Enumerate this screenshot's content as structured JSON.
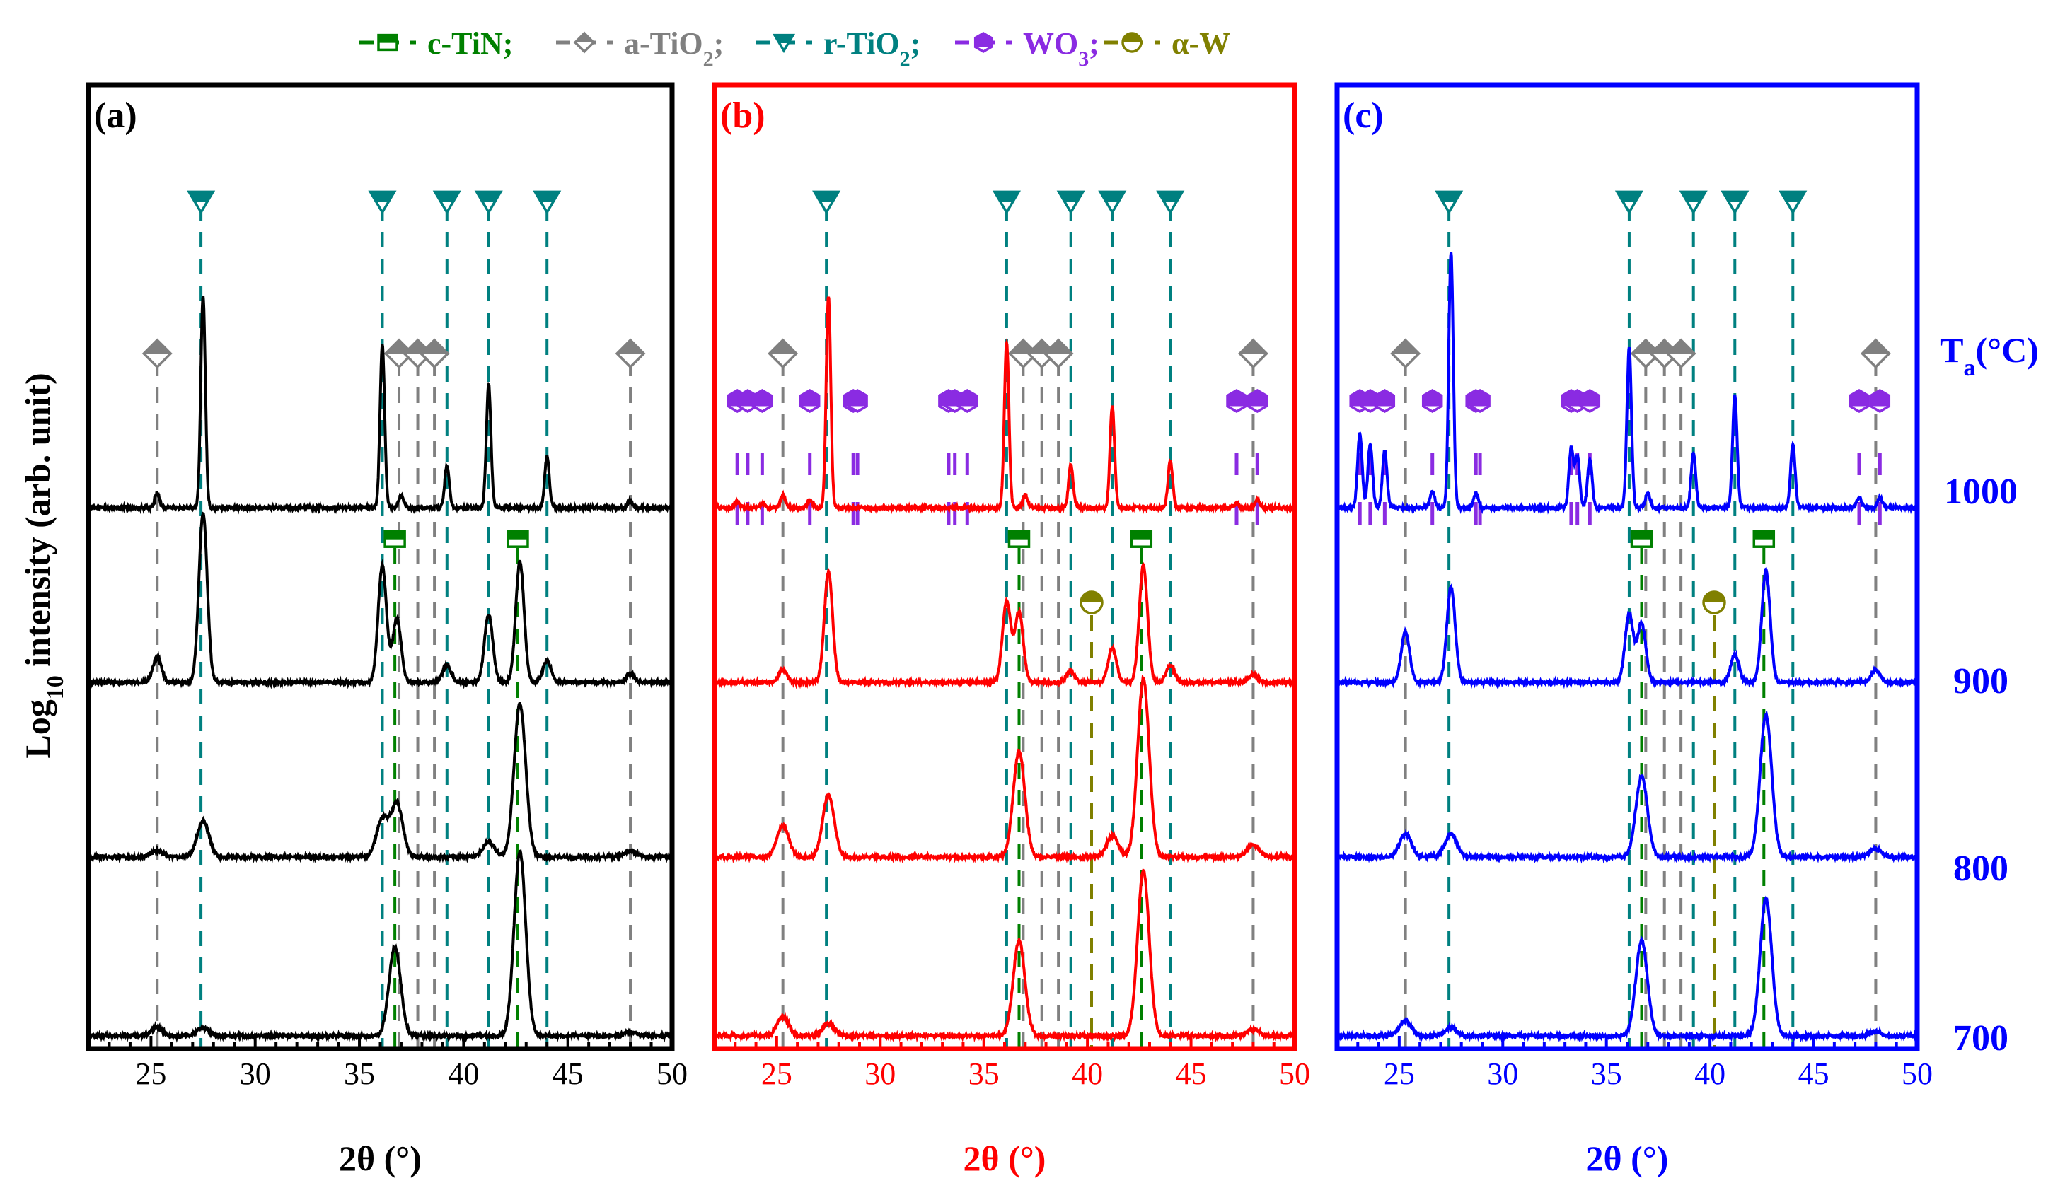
{
  "figure": {
    "ylabel_main": "Log",
    "ylabel_sub": "10",
    "ylabel_rest": " intensity (arb. unit)",
    "temp_axis_title": "T",
    "temp_axis_title_sub": "a",
    "temp_axis_title_unit": "(°C)",
    "temperatures": [
      "1000",
      "900",
      "800",
      "700"
    ]
  },
  "legend": [
    {
      "id": "ctin",
      "label": "c-TiN;",
      "color": "#008000",
      "marker": "half-square-icon"
    },
    {
      "id": "atio2",
      "label": "a-TiO",
      "sub": "2",
      "suffix": ";",
      "color": "#808080",
      "marker": "diamond-icon"
    },
    {
      "id": "rtio2",
      "label": "r-TiO",
      "sub": "2",
      "suffix": ";",
      "color": "#008080",
      "marker": "down-triangle-icon"
    },
    {
      "id": "wo3",
      "label": "WO",
      "sub": "3",
      "suffix": ";",
      "color": "#8a2be2",
      "marker": "hexagon-icon"
    },
    {
      "id": "alphaw",
      "label": "α-W",
      "color": "#808000",
      "marker": "half-circle-icon"
    }
  ],
  "chart_data": {
    "type": "line",
    "title": "",
    "xlabel": "2θ (°)",
    "ylabel": "Log10 intensity (arb. unit)",
    "xlim": [
      22,
      50
    ],
    "xticks": [
      25,
      30,
      35,
      40,
      45,
      50
    ],
    "reference_peaks": {
      "c-TiN": [
        36.7,
        42.6
      ],
      "a-TiO2": [
        25.3,
        36.9,
        37.8,
        38.6,
        48.0
      ],
      "r-TiO2": [
        27.4,
        36.1,
        39.2,
        41.2,
        44.0
      ],
      "WO3": [
        23.1,
        23.6,
        24.3,
        26.6,
        28.7,
        28.9,
        33.3,
        33.6,
        34.2,
        47.2,
        48.2
      ],
      "alpha-W": [
        40.2
      ]
    },
    "panels": [
      {
        "label": "(a)",
        "color": "#000000",
        "series": [
          {
            "name": "1000",
            "peaks": [
              [
                25.3,
                0.07
              ],
              [
                27.5,
                1.0
              ],
              [
                36.1,
                0.77
              ],
              [
                37.0,
                0.06
              ],
              [
                39.2,
                0.2
              ],
              [
                41.2,
                0.58
              ],
              [
                44.0,
                0.24
              ],
              [
                48.0,
                0.03
              ]
            ]
          },
          {
            "name": "900",
            "peaks": [
              [
                25.3,
                0.12
              ],
              [
                27.5,
                0.8
              ],
              [
                36.1,
                0.55
              ],
              [
                36.8,
                0.3
              ],
              [
                39.2,
                0.08
              ],
              [
                41.2,
                0.32
              ],
              [
                42.7,
                0.57
              ],
              [
                44.0,
                0.1
              ],
              [
                48.0,
                0.04
              ]
            ]
          },
          {
            "name": "800",
            "peaks": [
              [
                25.3,
                0.03
              ],
              [
                27.5,
                0.17
              ],
              [
                36.1,
                0.18
              ],
              [
                36.8,
                0.25
              ],
              [
                41.2,
                0.07
              ],
              [
                42.7,
                0.72
              ],
              [
                48.0,
                0.03
              ]
            ]
          },
          {
            "name": "700",
            "peaks": [
              [
                25.3,
                0.04
              ],
              [
                27.5,
                0.04
              ],
              [
                36.7,
                0.42
              ],
              [
                42.7,
                0.87
              ],
              [
                48.0,
                0.02
              ]
            ]
          }
        ]
      },
      {
        "label": "(b)",
        "color": "#ff0000",
        "series": [
          {
            "name": "1000",
            "peaks": [
              [
                23.1,
                0.03
              ],
              [
                24.3,
                0.02
              ],
              [
                25.3,
                0.06
              ],
              [
                26.6,
                0.04
              ],
              [
                27.5,
                1.0
              ],
              [
                36.1,
                0.78
              ],
              [
                37.0,
                0.06
              ],
              [
                39.2,
                0.2
              ],
              [
                41.2,
                0.48
              ],
              [
                44.0,
                0.22
              ],
              [
                47.2,
                0.02
              ],
              [
                48.2,
                0.04
              ]
            ]
          },
          {
            "name": "900",
            "peaks": [
              [
                25.3,
                0.06
              ],
              [
                27.5,
                0.52
              ],
              [
                36.1,
                0.38
              ],
              [
                36.7,
                0.33
              ],
              [
                39.2,
                0.05
              ],
              [
                41.2,
                0.16
              ],
              [
                42.7,
                0.55
              ],
              [
                44.0,
                0.08
              ],
              [
                48.0,
                0.04
              ]
            ]
          },
          {
            "name": "800",
            "peaks": [
              [
                25.3,
                0.15
              ],
              [
                27.5,
                0.29
              ],
              [
                36.7,
                0.5
              ],
              [
                41.2,
                0.1
              ],
              [
                42.7,
                0.84
              ],
              [
                48.0,
                0.06
              ]
            ]
          },
          {
            "name": "700",
            "peaks": [
              [
                25.3,
                0.09
              ],
              [
                27.5,
                0.06
              ],
              [
                36.7,
                0.45
              ],
              [
                42.7,
                0.78
              ],
              [
                48.0,
                0.03
              ]
            ]
          }
        ]
      },
      {
        "label": "(c)",
        "color": "#0000ff",
        "series": [
          {
            "name": "1000",
            "peaks": [
              [
                23.1,
                0.35
              ],
              [
                23.6,
                0.3
              ],
              [
                24.3,
                0.27
              ],
              [
                26.6,
                0.08
              ],
              [
                27.5,
                1.2
              ],
              [
                28.7,
                0.07
              ],
              [
                33.3,
                0.28
              ],
              [
                33.6,
                0.24
              ],
              [
                34.2,
                0.23
              ],
              [
                36.1,
                0.75
              ],
              [
                37.0,
                0.07
              ],
              [
                39.2,
                0.26
              ],
              [
                41.2,
                0.53
              ],
              [
                44.0,
                0.3
              ],
              [
                47.2,
                0.05
              ],
              [
                48.2,
                0.05
              ]
            ]
          },
          {
            "name": "900",
            "peaks": [
              [
                25.3,
                0.24
              ],
              [
                27.5,
                0.45
              ],
              [
                36.1,
                0.32
              ],
              [
                36.7,
                0.28
              ],
              [
                41.2,
                0.13
              ],
              [
                42.7,
                0.53
              ],
              [
                48.0,
                0.06
              ]
            ]
          },
          {
            "name": "800",
            "peaks": [
              [
                25.3,
                0.11
              ],
              [
                27.5,
                0.11
              ],
              [
                36.7,
                0.38
              ],
              [
                42.7,
                0.67
              ],
              [
                48.0,
                0.04
              ]
            ]
          },
          {
            "name": "700",
            "peaks": [
              [
                25.3,
                0.07
              ],
              [
                27.5,
                0.04
              ],
              [
                36.7,
                0.45
              ],
              [
                42.7,
                0.65
              ],
              [
                48.0,
                0.02
              ]
            ]
          }
        ]
      }
    ]
  }
}
